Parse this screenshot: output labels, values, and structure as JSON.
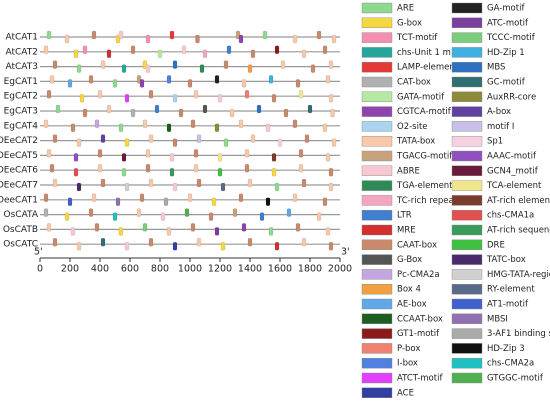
{
  "chart_data": {
    "type": "motif",
    "xlim": [
      0,
      2000
    ],
    "xticks": [
      0,
      200,
      400,
      600,
      800,
      1000,
      1200,
      1400,
      1600,
      1800,
      2000
    ],
    "start_label": "5'",
    "end_label": "3'",
    "legend": [
      {
        "name": "ARE",
        "color": "#8fd88f"
      },
      {
        "name": "G-box",
        "color": "#f5d742"
      },
      {
        "name": "TCT-motif",
        "color": "#f48fb1"
      },
      {
        "name": "chs-Unit 1 m1",
        "color": "#26a69a"
      },
      {
        "name": "LAMP-element",
        "color": "#e53935"
      },
      {
        "name": "CAT-box",
        "color": "#b0b0b0"
      },
      {
        "name": "GATA-motif",
        "color": "#b5e8a0"
      },
      {
        "name": "CGTCA-motif",
        "color": "#8e44ad"
      },
      {
        "name": "O2-site",
        "color": "#aad4ee"
      },
      {
        "name": "TATA-box",
        "color": "#f7c9a8"
      },
      {
        "name": "TGACG-motif",
        "color": "#c8a27c"
      },
      {
        "name": "ABRE",
        "color": "#f8c8d0"
      },
      {
        "name": "TGA-element",
        "color": "#2e8b57"
      },
      {
        "name": "TC-rich repeats",
        "color": "#f4a6c0"
      },
      {
        "name": "LTR",
        "color": "#3f7fd0"
      },
      {
        "name": "MRE",
        "color": "#d32f2f"
      },
      {
        "name": "CAAT-box",
        "color": "#c88a6a"
      },
      {
        "name": "G-Box",
        "color": "#555555"
      },
      {
        "name": "Pc-CMA2a",
        "color": "#c3a6e0"
      },
      {
        "name": "Box 4",
        "color": "#f0a040"
      },
      {
        "name": "AE-box",
        "color": "#5fa8e8"
      },
      {
        "name": "CCAAT-box",
        "color": "#1b5e20"
      },
      {
        "name": "GT1-motif",
        "color": "#8b1a1a"
      },
      {
        "name": "P-box",
        "color": "#f08070"
      },
      {
        "name": "I-box",
        "color": "#5080e0"
      },
      {
        "name": "ATCT-motif",
        "color": "#e040fb"
      },
      {
        "name": "ACE",
        "color": "#3040a0"
      },
      {
        "name": "GA-motif",
        "color": "#222222"
      },
      {
        "name": "ATC-motif",
        "color": "#7b3f9e"
      },
      {
        "name": "TCCC-motif",
        "color": "#7ccd7c"
      },
      {
        "name": "HD-Zip 1",
        "color": "#40b0e0"
      },
      {
        "name": "MBS",
        "color": "#3070c0"
      },
      {
        "name": "GC-motif",
        "color": "#2f6f6f"
      },
      {
        "name": "AuxRR-core",
        "color": "#8a8a3a"
      },
      {
        "name": "A-box",
        "color": "#6040a0"
      },
      {
        "name": "motif I",
        "color": "#c8c0e8"
      },
      {
        "name": "Sp1",
        "color": "#f6d0e0"
      },
      {
        "name": "AAAC-motif",
        "color": "#9050c0"
      },
      {
        "name": "GCN4_motif",
        "color": "#6a1b3a"
      },
      {
        "name": "TCA-element",
        "color": "#f0e68c"
      },
      {
        "name": "AT-rich element",
        "color": "#7b3b2b"
      },
      {
        "name": "chs-CMA1a",
        "color": "#e05050"
      },
      {
        "name": "AT-rich sequence",
        "color": "#3a9a5a"
      },
      {
        "name": "DRE",
        "color": "#40c040"
      },
      {
        "name": "TATC-box",
        "color": "#4a2a6a"
      },
      {
        "name": "HMG-TATA-region",
        "color": "#d0d0d0"
      },
      {
        "name": "RY-element",
        "color": "#5a6a8a"
      },
      {
        "name": "AT1-motif",
        "color": "#4060d0"
      },
      {
        "name": "MBSI",
        "color": "#9070b0"
      },
      {
        "name": "3-AF1 binding site",
        "color": "#aaaaaa"
      },
      {
        "name": "HD-Zip 3",
        "color": "#111111"
      },
      {
        "name": "chs-CMA2a",
        "color": "#20c0c0"
      },
      {
        "name": "GTGGC-motif",
        "color": "#50b050"
      }
    ],
    "rows": [
      {
        "name": "AtCAT1",
        "elements": [
          {
            "motif": "ARE",
            "x": 60
          },
          {
            "motif": "TATA-box",
            "x": 180
          },
          {
            "motif": "CAAT-box",
            "x": 360
          },
          {
            "motif": "G-box",
            "x": 520
          },
          {
            "motif": "ABRE",
            "x": 540
          },
          {
            "motif": "TCT-motif",
            "x": 720
          },
          {
            "motif": "LAMP-element",
            "x": 880
          },
          {
            "motif": "CAAT-box",
            "x": 1050
          },
          {
            "motif": "TGACG-motif",
            "x": 1320
          },
          {
            "motif": "CGTCA-motif",
            "x": 1340
          },
          {
            "motif": "ARE",
            "x": 1500
          },
          {
            "motif": "TATA-box",
            "x": 1700
          },
          {
            "motif": "CAAT-box",
            "x": 1860
          },
          {
            "motif": "TATA-box",
            "x": 1960
          }
        ]
      },
      {
        "name": "AtCAT2",
        "elements": [
          {
            "motif": "TATA-box",
            "x": 40
          },
          {
            "motif": "G-box",
            "x": 240
          },
          {
            "motif": "TCT-motif",
            "x": 300
          },
          {
            "motif": "MRE",
            "x": 460
          },
          {
            "motif": "CAAT-box",
            "x": 620
          },
          {
            "motif": "GATA-motif",
            "x": 800
          },
          {
            "motif": "ABRE",
            "x": 960
          },
          {
            "motif": "TC-rich repeats",
            "x": 1100
          },
          {
            "motif": "LTR",
            "x": 1260
          },
          {
            "motif": "CAAT-box",
            "x": 1420
          },
          {
            "motif": "GT1-motif",
            "x": 1580
          },
          {
            "motif": "TATA-box",
            "x": 1760
          },
          {
            "motif": "CAAT-box",
            "x": 1900
          }
        ]
      },
      {
        "name": "AtCAT3",
        "elements": [
          {
            "motif": "CAAT-box",
            "x": 100
          },
          {
            "motif": "ARE",
            "x": 260
          },
          {
            "motif": "TATA-box",
            "x": 420
          },
          {
            "motif": "chs-Unit 1 m1",
            "x": 560
          },
          {
            "motif": "G-box",
            "x": 700
          },
          {
            "motif": "ABRE",
            "x": 720
          },
          {
            "motif": "MBS",
            "x": 900
          },
          {
            "motif": "TGA-element",
            "x": 1080
          },
          {
            "motif": "CAAT-box",
            "x": 1240
          },
          {
            "motif": "Box 4",
            "x": 1400
          },
          {
            "motif": "TATA-box",
            "x": 1620
          },
          {
            "motif": "CAAT-box",
            "x": 1820
          },
          {
            "motif": "TATA-box",
            "x": 1940
          }
        ]
      },
      {
        "name": "EgCAT1",
        "elements": [
          {
            "motif": "TATA-box",
            "x": 80
          },
          {
            "motif": "AE-box",
            "x": 200
          },
          {
            "motif": "CAAT-box",
            "x": 340
          },
          {
            "motif": "ARE",
            "x": 500
          },
          {
            "motif": "TGACG-motif",
            "x": 660
          },
          {
            "motif": "CGTCA-motif",
            "x": 680
          },
          {
            "motif": "I-box",
            "x": 860
          },
          {
            "motif": "CAAT-box",
            "x": 1000
          },
          {
            "motif": "GA-motif",
            "x": 1180
          },
          {
            "motif": "TATA-box",
            "x": 1360
          },
          {
            "motif": "HD-Zip 1",
            "x": 1540
          },
          {
            "motif": "CAAT-box",
            "x": 1720
          },
          {
            "motif": "TATA-box",
            "x": 1920
          }
        ]
      },
      {
        "name": "EgCAT2",
        "elements": [
          {
            "motif": "CAAT-box",
            "x": 60
          },
          {
            "motif": "G-box",
            "x": 280
          },
          {
            "motif": "TATA-box",
            "x": 400
          },
          {
            "motif": "ATCT-motif",
            "x": 580
          },
          {
            "motif": "CAAT-box",
            "x": 740
          },
          {
            "motif": "O2-site",
            "x": 900
          },
          {
            "motif": "TATA-box",
            "x": 1040
          },
          {
            "motif": "ABRE",
            "x": 1200
          },
          {
            "motif": "P-box",
            "x": 1380
          },
          {
            "motif": "CAAT-box",
            "x": 1560
          },
          {
            "motif": "TCA-element",
            "x": 1740
          },
          {
            "motif": "TATA-box",
            "x": 1940
          }
        ]
      },
      {
        "name": "EgCAT3",
        "elements": [
          {
            "motif": "ARE",
            "x": 120
          },
          {
            "motif": "CAAT-box",
            "x": 300
          },
          {
            "motif": "TATA-box",
            "x": 460
          },
          {
            "motif": "CAT-box",
            "x": 620
          },
          {
            "motif": "LTR",
            "x": 780
          },
          {
            "motif": "CAAT-box",
            "x": 940
          },
          {
            "motif": "G-Box",
            "x": 1100
          },
          {
            "motif": "TATA-box",
            "x": 1280
          },
          {
            "motif": "MBS",
            "x": 1460
          },
          {
            "motif": "CAAT-box",
            "x": 1640
          },
          {
            "motif": "GC-motif",
            "x": 1800
          },
          {
            "motif": "TATA-box",
            "x": 1950
          }
        ]
      },
      {
        "name": "EgCAT4",
        "elements": [
          {
            "motif": "TATA-box",
            "x": 40
          },
          {
            "motif": "CAAT-box",
            "x": 220
          },
          {
            "motif": "Pc-CMA2a",
            "x": 380
          },
          {
            "motif": "ARE",
            "x": 540
          },
          {
            "motif": "TATA-box",
            "x": 700
          },
          {
            "motif": "CCAAT-box",
            "x": 860
          },
          {
            "motif": "CAAT-box",
            "x": 1020
          },
          {
            "motif": "AuxRR-core",
            "x": 1180
          },
          {
            "motif": "TATA-box",
            "x": 1340
          },
          {
            "motif": "ABRE",
            "x": 1520
          },
          {
            "motif": "CAAT-box",
            "x": 1700
          },
          {
            "motif": "TATA-box",
            "x": 1900
          }
        ]
      },
      {
        "name": "OEeCAT2",
        "elements": [
          {
            "motif": "CAAT-box",
            "x": 100
          },
          {
            "motif": "TATA-box",
            "x": 260
          },
          {
            "motif": "A-box",
            "x": 420
          },
          {
            "motif": "G-box",
            "x": 580
          },
          {
            "motif": "TATA-box",
            "x": 740
          },
          {
            "motif": "CAAT-box",
            "x": 900
          },
          {
            "motif": "motif I",
            "x": 1060
          },
          {
            "motif": "ARE",
            "x": 1240
          },
          {
            "motif": "TATA-box",
            "x": 1420
          },
          {
            "motif": "Sp1",
            "x": 1600
          },
          {
            "motif": "CAAT-box",
            "x": 1780
          },
          {
            "motif": "TATA-box",
            "x": 1960
          }
        ]
      },
      {
        "name": "OEeCAT5",
        "elements": [
          {
            "motif": "TATA-box",
            "x": 60
          },
          {
            "motif": "AAAC-motif",
            "x": 240
          },
          {
            "motif": "CAAT-box",
            "x": 400
          },
          {
            "motif": "GCN4_motif",
            "x": 560
          },
          {
            "motif": "TATA-box",
            "x": 720
          },
          {
            "motif": "ABRE",
            "x": 880
          },
          {
            "motif": "CAAT-box",
            "x": 1040
          },
          {
            "motif": "TCA-element",
            "x": 1200
          },
          {
            "motif": "TATA-box",
            "x": 1380
          },
          {
            "motif": "AT-rich element",
            "x": 1560
          },
          {
            "motif": "CAAT-box",
            "x": 1740
          },
          {
            "motif": "TATA-box",
            "x": 1920
          }
        ]
      },
      {
        "name": "OEeCAT6",
        "elements": [
          {
            "motif": "CAAT-box",
            "x": 80
          },
          {
            "motif": "chs-CMA1a",
            "x": 240
          },
          {
            "motif": "TATA-box",
            "x": 400
          },
          {
            "motif": "ARE",
            "x": 560
          },
          {
            "motif": "CAAT-box",
            "x": 720
          },
          {
            "motif": "AT-rich sequence",
            "x": 880
          },
          {
            "motif": "TATA-box",
            "x": 1040
          },
          {
            "motif": "DRE",
            "x": 1200
          },
          {
            "motif": "CAAT-box",
            "x": 1380
          },
          {
            "motif": "G-box",
            "x": 1560
          },
          {
            "motif": "TATA-box",
            "x": 1740
          },
          {
            "motif": "CAAT-box",
            "x": 1940
          }
        ]
      },
      {
        "name": "OEeCAT7",
        "elements": [
          {
            "motif": "TATA-box",
            "x": 100
          },
          {
            "motif": "TATC-box",
            "x": 260
          },
          {
            "motif": "CAAT-box",
            "x": 420
          },
          {
            "motif": "HMG-TATA-region",
            "x": 580
          },
          {
            "motif": "TATA-box",
            "x": 740
          },
          {
            "motif": "ABRE",
            "x": 900
          },
          {
            "motif": "CAAT-box",
            "x": 1060
          },
          {
            "motif": "RY-element",
            "x": 1220
          },
          {
            "motif": "TATA-box",
            "x": 1400
          },
          {
            "motif": "ARE",
            "x": 1580
          },
          {
            "motif": "CAAT-box",
            "x": 1760
          },
          {
            "motif": "TATA-box",
            "x": 1940
          }
        ]
      },
      {
        "name": "OeeCAT1",
        "elements": [
          {
            "motif": "CAAT-box",
            "x": 40
          },
          {
            "motif": "AT1-motif",
            "x": 200
          },
          {
            "motif": "TATA-box",
            "x": 360
          },
          {
            "motif": "MBSI",
            "x": 520
          },
          {
            "motif": "CAAT-box",
            "x": 680
          },
          {
            "motif": "3-AF1 binding site",
            "x": 840
          },
          {
            "motif": "TATA-box",
            "x": 1000
          },
          {
            "motif": "G-box",
            "x": 1160
          },
          {
            "motif": "CAAT-box",
            "x": 1340
          },
          {
            "motif": "HD-Zip 3",
            "x": 1520
          },
          {
            "motif": "TATA-box",
            "x": 1700
          },
          {
            "motif": "CAAT-box",
            "x": 1900
          }
        ]
      },
      {
        "name": "OsCATA",
        "elements": [
          {
            "motif": "CAT-box",
            "x": 40
          },
          {
            "motif": "G-box",
            "x": 180
          },
          {
            "motif": "CAAT-box",
            "x": 340
          },
          {
            "motif": "chs-CMA2a",
            "x": 500
          },
          {
            "motif": "TATA-box",
            "x": 660
          },
          {
            "motif": "ABRE",
            "x": 820
          },
          {
            "motif": "GTGGC-motif",
            "x": 980
          },
          {
            "motif": "CAAT-box",
            "x": 1140
          },
          {
            "motif": "TGACG-motif",
            "x": 1300
          },
          {
            "motif": "LTR",
            "x": 1480
          },
          {
            "motif": "AE-box",
            "x": 1660
          },
          {
            "motif": "TATA-box",
            "x": 1860
          }
        ]
      },
      {
        "name": "OsCATB",
        "elements": [
          {
            "motif": "TATA-box",
            "x": 60
          },
          {
            "motif": "ABRE",
            "x": 220
          },
          {
            "motif": "CAAT-box",
            "x": 380
          },
          {
            "motif": "G-box",
            "x": 540
          },
          {
            "motif": "TCCC-motif",
            "x": 700
          },
          {
            "motif": "TATA-box",
            "x": 860
          },
          {
            "motif": "CAAT-box",
            "x": 1020
          },
          {
            "motif": "ATC-motif",
            "x": 1180
          },
          {
            "motif": "CGTCA-motif",
            "x": 1360
          },
          {
            "motif": "ARE",
            "x": 1540
          },
          {
            "motif": "CAAT-box",
            "x": 1720
          },
          {
            "motif": "TATA-box",
            "x": 1920
          }
        ]
      },
      {
        "name": "OsCATC",
        "elements": [
          {
            "motif": "CAAT-box",
            "x": 100
          },
          {
            "motif": "TATA-box",
            "x": 260
          },
          {
            "motif": "GC-motif",
            "x": 420
          },
          {
            "motif": "ABRE",
            "x": 580
          },
          {
            "motif": "CAAT-box",
            "x": 740
          },
          {
            "motif": "ACE",
            "x": 900
          },
          {
            "motif": "TATA-box",
            "x": 1060
          },
          {
            "motif": "G-box",
            "x": 1220
          },
          {
            "motif": "CAAT-box",
            "x": 1400
          },
          {
            "motif": "MRE",
            "x": 1580
          },
          {
            "motif": "TATA-box",
            "x": 1760
          },
          {
            "motif": "CAAT-box",
            "x": 1940
          }
        ]
      }
    ]
  }
}
